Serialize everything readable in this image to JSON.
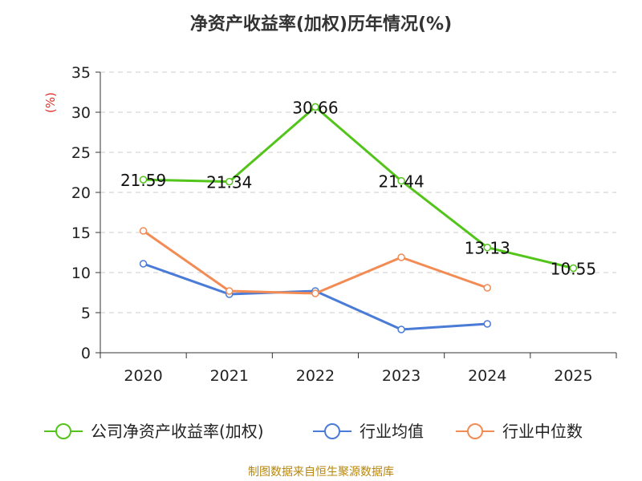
{
  "chart_data": {
    "type": "line",
    "title": "净资产收益率(加权)历年情况(%)",
    "ylabel": "(%)",
    "xlabel": "",
    "ylim": [
      0,
      35
    ],
    "yticks": [
      0,
      5,
      10,
      15,
      20,
      25,
      30,
      35
    ],
    "categories": [
      "2020",
      "2021",
      "2022",
      "2023",
      "2024",
      "2025"
    ],
    "grid": true,
    "legend_position": "bottom",
    "series": [
      {
        "name": "公司净资产收益率(加权)",
        "color": "#52c41a",
        "values": [
          21.59,
          21.34,
          30.66,
          21.44,
          13.13,
          10.55
        ],
        "labels": [
          "21.59",
          "21.34",
          "30.66",
          "21.44",
          "13.13",
          "10.55"
        ],
        "show_labels": true
      },
      {
        "name": "行业均值",
        "color": "#4a7bd6",
        "values": [
          11.1,
          7.3,
          7.7,
          2.9,
          3.6,
          null
        ],
        "show_labels": false
      },
      {
        "name": "行业中位数",
        "color": "#f28b54",
        "values": [
          15.2,
          7.7,
          7.4,
          11.9,
          8.1,
          null
        ],
        "show_labels": false
      }
    ]
  },
  "source": "制图数据来自恒生聚源数据库"
}
